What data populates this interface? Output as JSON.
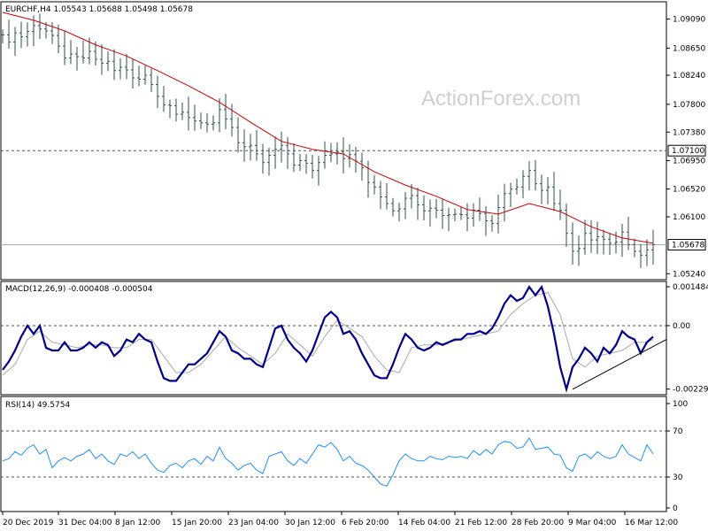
{
  "colors": {
    "background": "#ffffff",
    "frame": "#000000",
    "bar": "#2f4f4f",
    "ma": "#cc0000",
    "macd": "#00008b",
    "signal": "#a9a9a9",
    "rsi": "#1e90ff",
    "level_line": "#555555",
    "current_line": "#a9a9a9",
    "trendline": "#000000",
    "watermark": "#cfcfcf"
  },
  "watermark": "ActionForex.com",
  "chart_data": [
    {
      "type": "ohlc",
      "title": "EURCHF,H4  1.05543 1.05688 1.05498 1.05678",
      "y_ticks": [
        "1.09090",
        "1.08650",
        "1.08240",
        "1.07800",
        "1.07380",
        "1.06950",
        "1.06520",
        "1.06100",
        "1.05240"
      ],
      "ylim": [
        1.0515,
        1.0935
      ],
      "level_label": "1.07100",
      "level_value": 1.071,
      "current_label": "1.05678",
      "current_value": 1.05678,
      "series": [
        {
          "name": "",
          "role": "close",
          "x": [
            0,
            7,
            14,
            21,
            28,
            35,
            42,
            49,
            56,
            63,
            70,
            77,
            84,
            91,
            98,
            105,
            112,
            119,
            126,
            133,
            140,
            147,
            154,
            161,
            168,
            175,
            182,
            189,
            196,
            203,
            210,
            217,
            224,
            231,
            238,
            245,
            252,
            259,
            266,
            273,
            280,
            287,
            294,
            301,
            308,
            315,
            322,
            329,
            336,
            343,
            350,
            357,
            364,
            371,
            378,
            385,
            392,
            399,
            406,
            413,
            420,
            427,
            434,
            441,
            448,
            455,
            462,
            469,
            476,
            483,
            490,
            497,
            504,
            511,
            518,
            525,
            532,
            539,
            546,
            553,
            560,
            567,
            574,
            581,
            588,
            595,
            602,
            609,
            616,
            623,
            630,
            637,
            644,
            651,
            658,
            665,
            672,
            679,
            686,
            693,
            700,
            707,
            714,
            721,
            728,
            735
          ],
          "values": [
            1.0885,
            1.0874,
            1.0888,
            1.0882,
            1.089,
            1.0899,
            1.0894,
            1.0891,
            1.0884,
            1.0868,
            1.085,
            1.0856,
            1.0852,
            1.085,
            1.086,
            1.0848,
            1.0842,
            1.0845,
            1.0831,
            1.0836,
            1.0832,
            1.082,
            1.0818,
            1.0824,
            1.081,
            1.0792,
            1.0779,
            1.0778,
            1.0765,
            1.0768,
            1.076,
            1.0755,
            1.0752,
            1.075,
            1.0752,
            1.0772,
            1.0758,
            1.0745,
            1.0722,
            1.0716,
            1.0718,
            1.0705,
            1.0692,
            1.0703,
            1.0712,
            1.0718,
            1.0705,
            1.0688,
            1.0695,
            1.0691,
            1.068,
            1.0692,
            1.0703,
            1.0705,
            1.0708,
            1.0698,
            1.0704,
            1.0694,
            1.0684,
            1.0662,
            1.0655,
            1.064,
            1.063,
            1.0619,
            1.0622,
            1.0638,
            1.0642,
            1.0628,
            1.0619,
            1.0623,
            1.062,
            1.0612,
            1.0613,
            1.0614,
            1.0613,
            1.0608,
            1.062,
            1.0615,
            1.0604,
            1.06,
            1.0624,
            1.0645,
            1.0652,
            1.0655,
            1.0671,
            1.068,
            1.066,
            1.065,
            1.0655,
            1.063,
            1.062,
            1.0585,
            1.0558,
            1.0562,
            1.0585,
            1.0575,
            1.058,
            1.0576,
            1.057,
            1.0572,
            1.0587,
            1.0568,
            1.0558,
            1.0552,
            1.056,
            1.0568
          ]
        },
        {
          "name": "",
          "role": "moving-average",
          "x": [
            0,
            35,
            70,
            105,
            140,
            175,
            210,
            245,
            280,
            315,
            350,
            385,
            420,
            455,
            490,
            525,
            560,
            595,
            630,
            665,
            700,
            735
          ],
          "values": [
            1.0919,
            1.0907,
            1.0891,
            1.087,
            1.0853,
            1.0831,
            1.0808,
            1.0783,
            1.0753,
            1.0724,
            1.0712,
            1.0705,
            1.0678,
            1.0658,
            1.0641,
            1.0621,
            1.0614,
            1.063,
            1.0618,
            1.0595,
            1.0578,
            1.057
          ]
        }
      ]
    },
    {
      "type": "line",
      "title": "MACD(12,26,9) -0.000408 -0.000504",
      "y_ticks": [
        "0.001484",
        "0.00",
        "-0.002297"
      ],
      "ylim": [
        -0.0025,
        0.0016
      ],
      "series": [
        {
          "name": "",
          "role": "macd",
          "x": [
            0,
            7,
            14,
            21,
            28,
            35,
            42,
            49,
            56,
            63,
            70,
            77,
            84,
            91,
            98,
            105,
            112,
            119,
            126,
            133,
            140,
            147,
            154,
            161,
            168,
            175,
            182,
            189,
            196,
            203,
            210,
            217,
            224,
            231,
            238,
            245,
            252,
            259,
            266,
            273,
            280,
            287,
            294,
            301,
            308,
            315,
            322,
            329,
            336,
            343,
            350,
            357,
            364,
            371,
            378,
            385,
            392,
            399,
            406,
            413,
            420,
            427,
            434,
            441,
            448,
            455,
            462,
            469,
            476,
            483,
            490,
            497,
            504,
            511,
            518,
            525,
            532,
            539,
            546,
            553,
            560,
            567,
            574,
            581,
            588,
            595,
            602,
            609,
            616,
            623,
            630,
            637,
            644,
            651,
            658,
            665,
            672,
            679,
            686,
            693,
            700,
            707,
            714,
            721,
            728,
            735
          ],
          "values": [
            -0.0016,
            -0.0013,
            -0.0009,
            -0.0004,
            0.0,
            -0.0003,
            0.0,
            -0.0008,
            -0.0009,
            -0.0009,
            -0.0006,
            -0.0009,
            -0.0009,
            -0.0008,
            -0.0006,
            -0.0008,
            -0.0006,
            -0.0007,
            -0.0011,
            -0.0009,
            -0.0005,
            -0.0006,
            -0.0003,
            -0.0005,
            -0.0006,
            -0.0013,
            -0.0019,
            -0.002,
            -0.002,
            -0.0017,
            -0.0014,
            -0.0014,
            -0.0012,
            -0.001,
            -0.0006,
            -0.0002,
            -0.0004,
            -0.0009,
            -0.001,
            -0.0012,
            -0.0012,
            -0.0014,
            -0.0015,
            -0.0008,
            -0.0001,
            0.0,
            -0.0005,
            -0.0008,
            -0.001,
            -0.0013,
            -0.0009,
            -0.0003,
            0.0003,
            0.0005,
            0.0003,
            -0.0003,
            -0.0002,
            -0.0005,
            -0.001,
            -0.0014,
            -0.0018,
            -0.0019,
            -0.0019,
            -0.0014,
            -0.0008,
            -0.0003,
            -0.0005,
            -0.0008,
            -0.0009,
            -0.0008,
            -0.0006,
            -0.0007,
            -0.0006,
            -0.0005,
            -0.0005,
            -0.0003,
            -0.0003,
            -0.0002,
            -0.0003,
            -0.0001,
            0.0003,
            0.0008,
            0.0011,
            0.0009,
            0.001,
            0.0014,
            0.0011,
            0.0014,
            0.0007,
            -0.0003,
            -0.0015,
            -0.0023,
            -0.0015,
            -0.0012,
            -0.0008,
            -0.001,
            -0.0013,
            -0.0008,
            -0.001,
            -0.0007,
            -0.0002,
            -0.0004,
            -0.0005,
            -0.001,
            -0.0006,
            -0.0004
          ]
        },
        {
          "name": "",
          "role": "signal",
          "x": [
            0,
            14,
            28,
            42,
            56,
            70,
            84,
            98,
            112,
            126,
            140,
            154,
            168,
            182,
            196,
            210,
            224,
            238,
            252,
            266,
            280,
            294,
            308,
            322,
            336,
            350,
            364,
            378,
            392,
            406,
            420,
            434,
            448,
            462,
            476,
            490,
            504,
            518,
            532,
            546,
            560,
            574,
            588,
            602,
            616,
            630,
            644,
            658,
            672,
            686,
            700,
            714,
            728,
            735
          ],
          "values": [
            -0.0018,
            -0.0014,
            -0.0005,
            -0.0002,
            -0.0006,
            -0.0007,
            -0.0008,
            -0.0007,
            -0.0007,
            -0.0008,
            -0.0008,
            -0.0005,
            -0.0005,
            -0.0011,
            -0.0017,
            -0.0017,
            -0.0014,
            -0.0009,
            -0.0004,
            -0.0008,
            -0.0011,
            -0.0014,
            -0.001,
            -0.0003,
            -0.0007,
            -0.0011,
            -0.0004,
            0.0002,
            -0.0001,
            -0.0004,
            -0.0011,
            -0.0016,
            -0.0017,
            -0.0008,
            -0.0007,
            -0.0007,
            -0.0006,
            -0.0005,
            -0.0004,
            -0.0003,
            -0.0002,
            0.0004,
            0.0008,
            0.0011,
            0.0012,
            0.0004,
            -0.0012,
            -0.0015,
            -0.0011,
            -0.001,
            -0.0009,
            -0.0006,
            -0.0006,
            -0.0005
          ]
        }
      ],
      "annotations": [
        {
          "type": "trendline",
          "x": [
            644,
            752
          ],
          "values": [
            -0.0023,
            -0.0005
          ]
        }
      ]
    },
    {
      "type": "line",
      "title": "RSI(14) 49.5754",
      "y_ticks": [
        "100",
        "70",
        "30",
        "0"
      ],
      "ylim": [
        0,
        100
      ],
      "levels": [
        70,
        30
      ],
      "series": [
        {
          "name": "",
          "role": "rsi",
          "x": [
            0,
            7,
            14,
            21,
            28,
            35,
            42,
            49,
            56,
            63,
            70,
            77,
            84,
            91,
            98,
            105,
            112,
            119,
            126,
            133,
            140,
            147,
            154,
            161,
            168,
            175,
            182,
            189,
            196,
            203,
            210,
            217,
            224,
            231,
            238,
            245,
            252,
            259,
            266,
            273,
            280,
            287,
            294,
            301,
            308,
            315,
            322,
            329,
            336,
            343,
            350,
            357,
            364,
            371,
            378,
            385,
            392,
            399,
            406,
            413,
            420,
            427,
            434,
            441,
            448,
            455,
            462,
            469,
            476,
            483,
            490,
            497,
            504,
            511,
            518,
            525,
            532,
            539,
            546,
            553,
            560,
            567,
            574,
            581,
            588,
            595,
            602,
            609,
            616,
            623,
            630,
            637,
            644,
            651,
            658,
            665,
            672,
            679,
            686,
            693,
            700,
            707,
            714,
            721,
            728,
            735
          ],
          "values": [
            44,
            46,
            52,
            49,
            55,
            58,
            50,
            54,
            38,
            44,
            47,
            44,
            48,
            50,
            54,
            46,
            50,
            44,
            41,
            50,
            48,
            52,
            46,
            50,
            42,
            36,
            34,
            40,
            42,
            38,
            44,
            46,
            41,
            48,
            44,
            56,
            46,
            42,
            36,
            40,
            42,
            36,
            33,
            48,
            50,
            52,
            44,
            40,
            46,
            42,
            50,
            58,
            56,
            60,
            54,
            44,
            48,
            42,
            40,
            36,
            30,
            24,
            22,
            32,
            44,
            50,
            46,
            44,
            44,
            48,
            46,
            45,
            48,
            47,
            48,
            46,
            53,
            49,
            54,
            50,
            58,
            61,
            60,
            55,
            56,
            64,
            54,
            55,
            56,
            50,
            49,
            38,
            35,
            48,
            50,
            46,
            52,
            48,
            46,
            48,
            58,
            50,
            47,
            44,
            58,
            50
          ]
        }
      ]
    }
  ],
  "x_axis": {
    "labels": [
      "20 Dec 2019",
      "31 Dec 04:00",
      "8 Jan 12:00",
      "15 Jan 20:00",
      "23 Jan 04:00",
      "30 Jan 12:00",
      "6 Feb 20:00",
      "14 Feb 04:00",
      "21 Feb 12:00",
      "28 Feb 20:00",
      "9 Mar 04:00",
      "16 Mar 12:00"
    ],
    "positions": [
      3,
      66,
      130,
      194,
      258,
      322,
      386,
      450,
      514,
      578,
      642,
      706
    ]
  }
}
